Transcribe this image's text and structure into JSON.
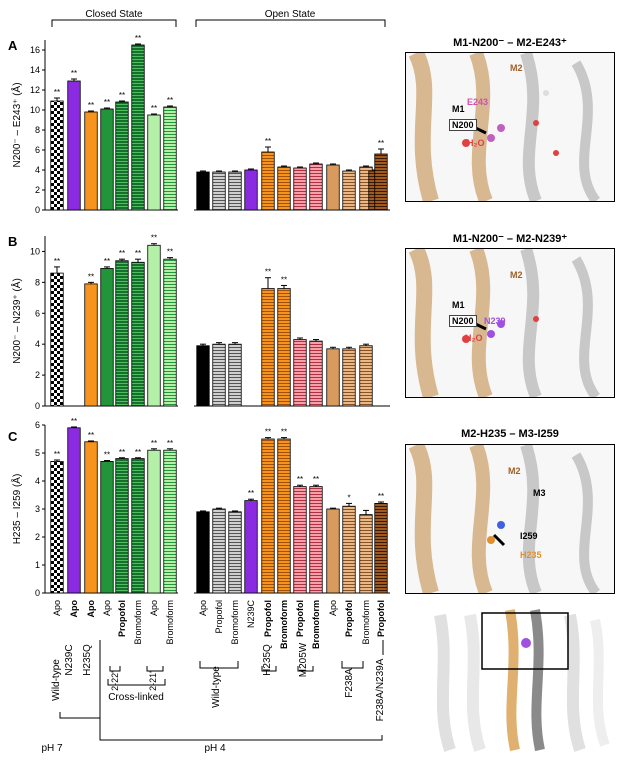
{
  "state_labels": {
    "closed": "Closed State",
    "open": "Open State"
  },
  "chart_data": [
    {
      "type": "bar",
      "panel": "A",
      "ylabel": "N200⁻ – E243⁺ (Å)",
      "ylim": [
        0,
        17
      ],
      "yticks": [
        0,
        2,
        4,
        6,
        8,
        10,
        12,
        14,
        16
      ],
      "values": [
        10.9,
        12.9,
        9.8,
        10.1,
        10.8,
        16.5,
        9.5,
        10.3,
        3.8,
        3.8,
        3.8,
        4.0,
        5.8,
        4.3,
        4.2,
        4.6,
        4.5,
        3.9,
        4.3,
        3.9,
        5.6
      ],
      "errors": [
        0.3,
        0.2,
        0.1,
        0.1,
        0.1,
        0.1,
        0.1,
        0.1,
        0.1,
        0.1,
        0.1,
        0.1,
        0.5,
        0.1,
        0.1,
        0.1,
        0.1,
        0.1,
        0.1,
        0.1,
        0.5
      ],
      "significance": [
        "**",
        "**",
        "**",
        "**",
        "**",
        "**",
        "**",
        "**",
        "",
        "",
        "",
        "",
        "**",
        "",
        "",
        "",
        "",
        "",
        "",
        "",
        "**"
      ]
    },
    {
      "type": "bar",
      "panel": "B",
      "ylabel": "N200⁻ – N239⁺ (Å)",
      "ylim": [
        0,
        11
      ],
      "yticks": [
        0,
        2,
        4,
        6,
        8,
        10
      ],
      "values": [
        8.6,
        null,
        7.9,
        8.9,
        9.4,
        9.3,
        10.4,
        9.5,
        3.9,
        4.0,
        4.0,
        null,
        7.6,
        7.6,
        4.3,
        4.2,
        3.7,
        3.7,
        3.9,
        null,
        null
      ],
      "errors": [
        0.4,
        0,
        0.1,
        0.1,
        0.1,
        0.2,
        0.1,
        0.1,
        0.1,
        0.1,
        0.1,
        0,
        0.7,
        0.2,
        0.1,
        0.1,
        0.1,
        0.1,
        0.1,
        0,
        0
      ],
      "significance": [
        "**",
        "",
        "**",
        "**",
        "**",
        "**",
        "**",
        "**",
        "",
        "",
        "",
        "",
        "**",
        "**",
        "",
        "",
        "",
        "",
        "",
        "",
        ""
      ]
    },
    {
      "type": "bar",
      "panel": "C",
      "ylabel": "H235 – I259 (Å)",
      "ylim": [
        0,
        6
      ],
      "yticks": [
        0,
        1,
        2,
        3,
        4,
        5,
        6
      ],
      "values": [
        4.7,
        5.9,
        5.4,
        4.7,
        4.8,
        4.8,
        5.1,
        5.1,
        2.9,
        3.0,
        2.9,
        3.3,
        5.5,
        5.5,
        3.8,
        3.8,
        3.0,
        3.1,
        2.8,
        null,
        3.2
      ],
      "errors": [
        0.05,
        0.03,
        0.03,
        0.03,
        0.03,
        0.03,
        0.05,
        0.05,
        0.03,
        0.03,
        0.03,
        0.05,
        0.05,
        0.05,
        0.05,
        0.05,
        0.03,
        0.1,
        0.15,
        0,
        0.05
      ],
      "significance": [
        "**",
        "**",
        "**",
        "**",
        "**",
        "**",
        "**",
        "**",
        "",
        "",
        "",
        "**",
        "**",
        "**",
        "**",
        "**",
        "",
        "*",
        "",
        "",
        "**"
      ]
    }
  ],
  "bar_styles": [
    "checker",
    "purple",
    "orange",
    "green",
    "green-h",
    "green-h",
    "lgreen",
    "lgreen-h",
    "black",
    "gray-h",
    "gray-h",
    "purple",
    "orange-h",
    "orange-h",
    "pink-h",
    "pink-h",
    "tan",
    "tan-h",
    "tan-h",
    "brown-h",
    "brown-h"
  ],
  "colors": {
    "purple": "#8a2be2",
    "orange": "#f7941d",
    "green": "#22943a",
    "dark_green": "#14702a",
    "light_green": "#b5f0a8",
    "black": "#000000",
    "gray": "#9a9a9a",
    "pink": "#f07a8a",
    "tan": "#d99a5e",
    "brown": "#7a3b10"
  },
  "x_labels": [
    {
      "text": "Apo",
      "bold": false
    },
    {
      "text": "Apo",
      "bold": true
    },
    {
      "text": "Apo",
      "bold": true
    },
    {
      "text": "Apo",
      "bold": false
    },
    {
      "text": "Propofol",
      "bold": true
    },
    {
      "text": "Bromoform",
      "bold": false
    },
    {
      "text": "Apo",
      "bold": false
    },
    {
      "text": "Bromoform",
      "bold": false
    },
    {
      "text": "Apo",
      "bold": false
    },
    {
      "text": "Propofol",
      "bold": false
    },
    {
      "text": "Bromoform",
      "bold": false
    },
    {
      "text": "N239C",
      "bold": false
    },
    {
      "text": "Propofol",
      "bold": true
    },
    {
      "text": "Bromoform",
      "bold": true
    },
    {
      "text": "Propofol",
      "bold": true
    },
    {
      "text": "Bromoform",
      "bold": true
    },
    {
      "text": "Apo",
      "bold": false
    },
    {
      "text": "Propofol",
      "bold": true
    },
    {
      "text": "Bromoform",
      "bold": false
    },
    {
      "text": "",
      "bold": false
    },
    {
      "text": "Propofol",
      "bold": true
    }
  ],
  "group_labels": {
    "wild_type_closed": "Wild-type",
    "n239c_closed": "N239C",
    "h235q_closed": "H235Q",
    "xl_222": "2-22'",
    "xl_221": "2-21'",
    "cross_linked": "Cross-linked",
    "wild_type_open": "Wild-type",
    "h235q_open": "H235Q",
    "m205w": "M205W",
    "f238a": "F238A",
    "f238a_n239a": "F238A/N239A",
    "ph7": "pH 7",
    "ph4": "pH 4"
  },
  "structure_panels": [
    {
      "title": "M1-N200⁻ – M2-E243⁺",
      "labels": [
        "M2",
        "M1",
        "E243",
        "N200",
        "H₂O"
      ]
    },
    {
      "title": "M1-N200⁻ – M2-N239⁺",
      "labels": [
        "M2",
        "M1",
        "N239",
        "N200",
        "H₂O"
      ]
    },
    {
      "title": "M2-H235 – M3-I259",
      "labels": [
        "M2",
        "M3",
        "I259",
        "H235"
      ]
    }
  ]
}
